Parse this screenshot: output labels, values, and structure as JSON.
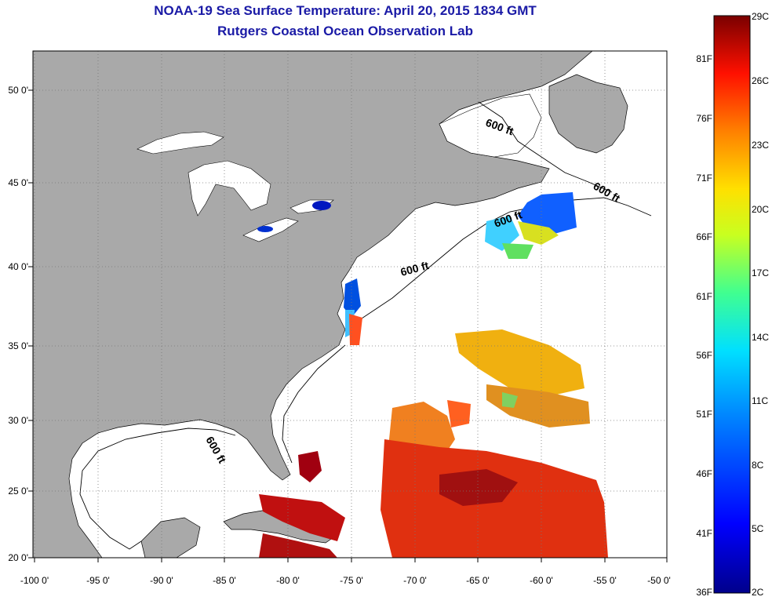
{
  "header": {
    "title": "NOAA-19 Sea Surface Temperature:  April 20, 2015 1834 GMT",
    "subtitle": "Rutgers Coastal Ocean Observation Lab"
  },
  "axes": {
    "lat_labels": [
      "50 0'",
      "45 0'",
      "40 0'",
      "35 0'",
      "30 0'",
      "25 0'",
      "20 0'"
    ],
    "lon_labels": [
      "-100 0'",
      "-95 0'",
      "-90 0'",
      "-85 0'",
      "-80 0'",
      "-75 0'",
      "-70 0'",
      "-65 0'",
      "-60 0'",
      "-55 0'",
      "-50 0'"
    ],
    "lat_range": [
      20,
      52
    ],
    "lon_range": [
      -100,
      -50
    ]
  },
  "isobath_labels": [
    "600 ft",
    "600 ft",
    "600 ft",
    "600 ft",
    "600 ft"
  ],
  "colorbar": {
    "f_labels": [
      "81F",
      "76F",
      "71F",
      "66F",
      "61F",
      "56F",
      "51F",
      "46F",
      "41F",
      "36F"
    ],
    "c_labels": [
      "29C",
      "26C",
      "23C",
      "20C",
      "17C",
      "14C",
      "11C",
      "8C",
      "5C",
      "2C"
    ],
    "range_c": [
      2,
      29
    ]
  },
  "colors": {
    "land": "#a9a9a9",
    "ocean": "#ffffff",
    "title": "#1a1aa6",
    "grid": "#777777"
  }
}
